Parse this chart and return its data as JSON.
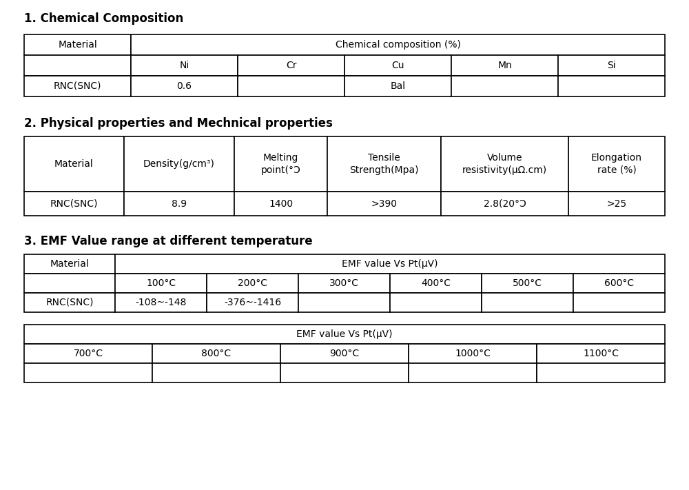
{
  "title1": "1. Chemical Composition",
  "title2": "2. Physical properties and Mechnical properties",
  "title3": "3. EMF Value range at different temperature",
  "chem_header_col1": "Material",
  "chem_header_span": "Chemical composition (%)",
  "chem_sub_headers": [
    "Ni",
    "Cr",
    "Cu",
    "Mn",
    "Si"
  ],
  "chem_row": [
    "RNC(SNC)",
    "0.6",
    "",
    "Bal",
    "",
    ""
  ],
  "phys_headers": [
    "Material",
    "Density(g/cm³)",
    "Melting\npoint(°Ɔ",
    "Tensile\nStrength(Mpa)",
    "Volume\nresistivity(μΩ.cm)",
    "Elongation\nrate (%)"
  ],
  "phys_row": [
    "RNC(SNC)",
    "8.9",
    "1400",
    ">390",
    "2.8(20°Ɔ",
    ">25"
  ],
  "emf1_header_col1": "Material",
  "emf1_header_span": "EMF value Vs Pt(μV)",
  "emf1_sub_headers": [
    "100°C",
    "200°C",
    "300°C",
    "400°C",
    "500°C",
    "600°C"
  ],
  "emf1_row": [
    "RNC(SNC)",
    "-108~-148",
    "-376~-1416",
    "",
    "",
    "",
    ""
  ],
  "emf2_header_span": "EMF value Vs Pt(μV)",
  "emf2_sub_headers": [
    "700°C",
    "800°C",
    "900°C",
    "1000°C",
    "1100°C"
  ],
  "emf2_row": [
    "",
    "",
    "",
    "",
    ""
  ],
  "bg_color": "#ffffff",
  "text_color": "#000000",
  "line_color": "#000000",
  "title_fontsize": 12,
  "header_fontsize": 10,
  "cell_fontsize": 10
}
